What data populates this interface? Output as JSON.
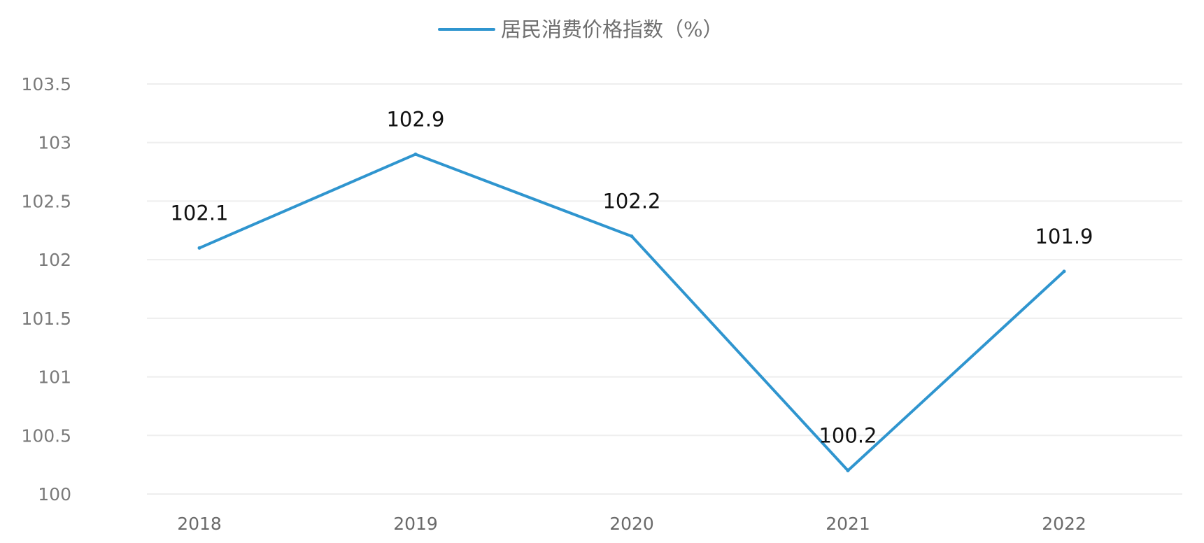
{
  "chart_data": {
    "type": "line",
    "categories": [
      "2018",
      "2019",
      "2020",
      "2021",
      "2022"
    ],
    "series": [
      {
        "name": "居民消费价格指数（%）",
        "values": [
          102.1,
          102.9,
          102.2,
          100.2,
          101.9
        ]
      }
    ],
    "data_labels": [
      "102.1",
      "102.9",
      "102.2",
      "100.2",
      "101.9"
    ],
    "y_ticks": [
      "100",
      "100.5",
      "101",
      "101.5",
      "102",
      "102.5",
      "103",
      "103.5"
    ],
    "ylim": [
      100,
      103.5
    ],
    "title": "",
    "xlabel": "",
    "ylabel": "",
    "legend_position": "top",
    "grid": true,
    "line_color": "#2f95cf"
  }
}
